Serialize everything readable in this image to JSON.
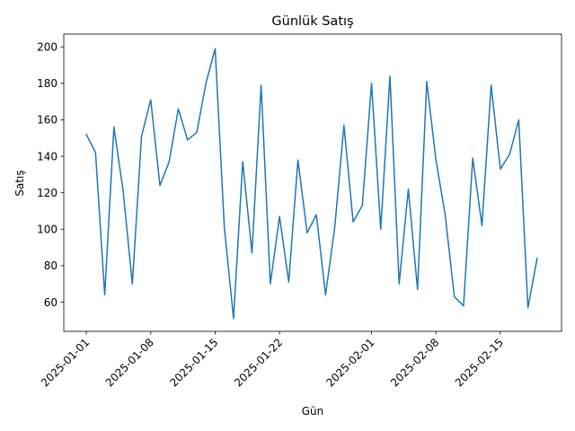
{
  "chart_data": {
    "type": "line",
    "title": "Günlük Satış",
    "xlabel": "Gün",
    "ylabel": "Satış",
    "x_start": "2025-01-01",
    "x_ticks": [
      "2025-01-01",
      "2025-01-08",
      "2025-01-15",
      "2025-01-22",
      "2025-02-01",
      "2025-02-08",
      "2025-02-15"
    ],
    "y_ticks": [
      60,
      80,
      100,
      120,
      140,
      160,
      180,
      200
    ],
    "ylim": [
      44,
      207
    ],
    "grid": false,
    "color": "#1f77b4",
    "series": [
      {
        "x": [
          "2025-01-01",
          "2025-01-02",
          "2025-01-03",
          "2025-01-04",
          "2025-01-05",
          "2025-01-06",
          "2025-01-07",
          "2025-01-08",
          "2025-01-09",
          "2025-01-10",
          "2025-01-11",
          "2025-01-12",
          "2025-01-13",
          "2025-01-14",
          "2025-01-15",
          "2025-01-16",
          "2025-01-17",
          "2025-01-18",
          "2025-01-19",
          "2025-01-20",
          "2025-01-21",
          "2025-01-22",
          "2025-01-23",
          "2025-01-24",
          "2025-01-25",
          "2025-01-26",
          "2025-01-27",
          "2025-01-28",
          "2025-01-29",
          "2025-01-30",
          "2025-01-31",
          "2025-02-01",
          "2025-02-02",
          "2025-02-03",
          "2025-02-04",
          "2025-02-05",
          "2025-02-06",
          "2025-02-07",
          "2025-02-08",
          "2025-02-09",
          "2025-02-10",
          "2025-02-11",
          "2025-02-12",
          "2025-02-13",
          "2025-02-14",
          "2025-02-15",
          "2025-02-16",
          "2025-02-17",
          "2025-02-18",
          "2025-02-19"
        ],
        "values": [
          152,
          142,
          64,
          156,
          121,
          70,
          151,
          171,
          124,
          137,
          166,
          149,
          153,
          180,
          199,
          101,
          51,
          137,
          87,
          179,
          70,
          107,
          71,
          138,
          98,
          108,
          64,
          101,
          157,
          104,
          113,
          180,
          100,
          184,
          70,
          122,
          67,
          181,
          138,
          108,
          63,
          58,
          139,
          102,
          179,
          133,
          141,
          160,
          57,
          84
        ]
      }
    ]
  }
}
